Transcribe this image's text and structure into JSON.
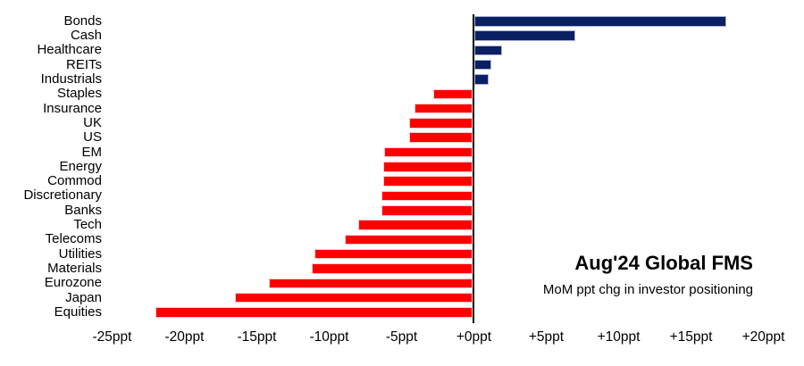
{
  "chart_data": {
    "type": "bar",
    "orientation": "horizontal",
    "title": "Aug'24 Global FMS",
    "subtitle": "MoM ppt chg in investor positioning",
    "unit": "ppt",
    "categories": [
      "Bonds",
      "Cash",
      "Healthcare",
      "REITs",
      "Industrials",
      "Staples",
      "Insurance",
      "UK",
      "US",
      "EM",
      "Energy",
      "Commod",
      "Discretionary",
      "Banks",
      "Tech",
      "Telecoms",
      "Utilities",
      "Materials",
      "Eurozone",
      "Japan",
      "Equities"
    ],
    "values": [
      17.4,
      7.0,
      1.9,
      1.2,
      1.0,
      -2.7,
      -4.0,
      -4.4,
      -4.4,
      -6.1,
      -6.2,
      -6.2,
      -6.3,
      -6.3,
      -7.9,
      -8.8,
      -10.9,
      -11.1,
      -14.1,
      -16.4,
      -21.9
    ],
    "x_ticks": [
      {
        "value": -25,
        "label": "-25ppt"
      },
      {
        "value": -20,
        "label": "-20ppt"
      },
      {
        "value": -15,
        "label": "-15ppt"
      },
      {
        "value": -10,
        "label": "-10ppt"
      },
      {
        "value": -5,
        "label": "-5ppt"
      },
      {
        "value": 0,
        "label": "+0ppt"
      },
      {
        "value": 5,
        "label": "+5ppt"
      },
      {
        "value": 10,
        "label": "+10ppt"
      },
      {
        "value": 15,
        "label": "+15ppt"
      },
      {
        "value": 20,
        "label": "+20ppt"
      }
    ],
    "xlim": [
      -27,
      22.8
    ],
    "grid": false,
    "legend_position": "none",
    "positive_color": "#0b1f63",
    "negative_color": "#ff0000",
    "axis_color": "#000000"
  }
}
